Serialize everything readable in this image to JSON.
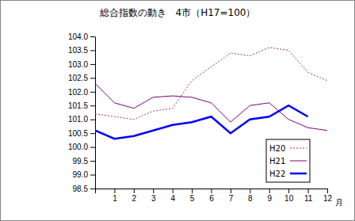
{
  "chart_data": {
    "type": "line",
    "title": "総合指数の動き　4市（H17=100）",
    "x_label": "月",
    "categories": [
      null,
      "1",
      "2",
      "3",
      "4",
      "5",
      "6",
      "7",
      "8",
      "9",
      "10",
      "11",
      "12"
    ],
    "series": [
      {
        "name": "H20",
        "color": "#993366",
        "line_style": "dotted",
        "values": [
          101.2,
          101.1,
          101.0,
          101.3,
          101.4,
          102.4,
          102.9,
          103.4,
          103.3,
          103.6,
          103.5,
          102.7,
          102.4
        ]
      },
      {
        "name": "H21",
        "color": "#800080",
        "line_style": "solid",
        "values": [
          102.3,
          101.6,
          101.4,
          101.8,
          101.85,
          101.8,
          101.6,
          100.9,
          101.5,
          101.6,
          101.0,
          100.7,
          100.6
        ]
      },
      {
        "name": "H22",
        "color": "#0000ff",
        "line_style": "solid",
        "values": [
          100.6,
          100.3,
          100.4,
          100.6,
          100.8,
          100.9,
          101.1,
          100.5,
          101.0,
          101.1,
          101.5,
          101.1,
          null
        ]
      }
    ],
    "ylim": [
      98.5,
      104.0
    ],
    "yticks": [
      98.5,
      {
        "value": 99,
        "label": "99.0"
      },
      99.5,
      {
        "value": 100,
        "label": "100.0"
      },
      100.5,
      {
        "value": 101,
        "label": "101.0"
      },
      101.5,
      {
        "value": 102,
        "label": "102.0"
      },
      102.5,
      {
        "value": 103,
        "label": "103.0"
      },
      103.5,
      {
        "value": 104,
        "label": "104.0"
      }
    ],
    "grid": false,
    "legend": "lower right"
  }
}
